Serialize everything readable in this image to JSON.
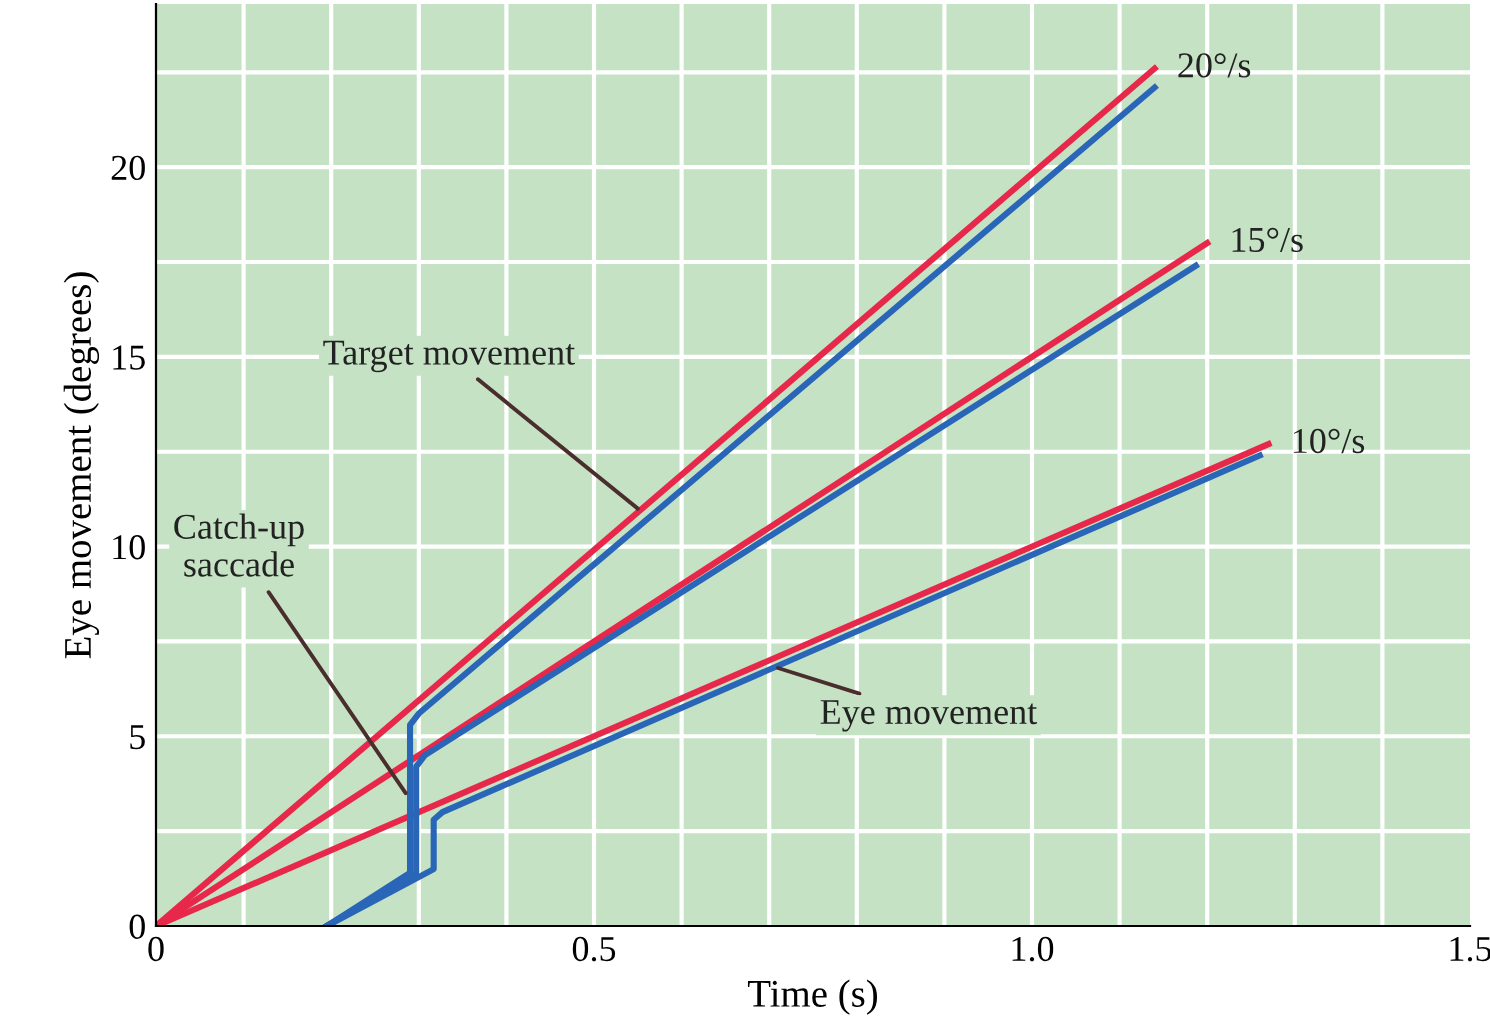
{
  "chart_data": {
    "type": "line",
    "xlabel": "Time (s)",
    "ylabel": "Eye movement (degrees)",
    "xlim": [
      0,
      1.5
    ],
    "ylim": [
      0,
      24.3
    ],
    "xticks": [
      {
        "value": 0,
        "label": "0"
      },
      0.5,
      {
        "value": 1.0,
        "label": "1.0"
      },
      1.5
    ],
    "yticks": [
      0,
      5,
      10,
      15,
      20
    ],
    "grid": true,
    "legend": false,
    "marker": "none",
    "line_style": "solid",
    "series": [
      {
        "name": "20°/s",
        "color": "#e8284a",
        "x": [
          0,
          1.14
        ],
        "values": [
          0,
          22.6
        ]
      },
      {
        "name": "15°/s",
        "color": "#e8284a",
        "x": [
          0,
          1.2
        ],
        "values": [
          0,
          18
        ]
      },
      {
        "name": "10°/s",
        "color": "#e8284a",
        "x": [
          0,
          1.27
        ],
        "values": [
          0,
          12.7
        ]
      },
      {
        "color": "#2a66b8",
        "x": [
          0.195,
          0.29,
          0.29,
          0.3,
          1.14
        ],
        "values": [
          0,
          1.4,
          5.3,
          5.6,
          22.1
        ]
      },
      {
        "color": "#2a66b8",
        "x": [
          0.195,
          0.297,
          0.297,
          0.307,
          1.187
        ],
        "values": [
          0,
          1.4,
          4.2,
          4.5,
          17.4
        ]
      },
      {
        "color": "#2a66b8",
        "x": [
          0.195,
          0.317,
          0.317,
          0.327,
          1.26
        ],
        "values": [
          0,
          1.5,
          2.8,
          3.0,
          12.4
        ]
      }
    ],
    "annotations": [
      {
        "text": "Target movement",
        "x": 0.55,
        "y": 11
      },
      {
        "text": "Catch-up\nsaccade",
        "x": 0.285,
        "y": 3.5
      },
      {
        "text": "Eye movement",
        "x": 0.71,
        "y": 6.8
      }
    ]
  }
}
